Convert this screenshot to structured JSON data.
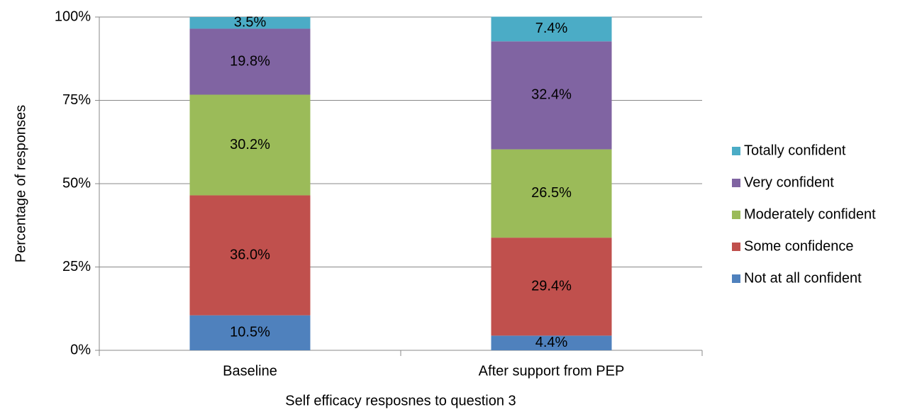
{
  "chart_data": {
    "type": "stacked_bar",
    "x_label": "Self efficacy resposnes to question 3",
    "y_label": "Percentage of responses",
    "categories": [
      "Baseline",
      "After support from PEP"
    ],
    "series": [
      {
        "name": "Not at all confident",
        "color": "#4f81bd",
        "values": [
          10.5,
          4.4
        ],
        "value_labels": [
          "10.5%",
          "4.4%"
        ]
      },
      {
        "name": "Some confidence",
        "color": "#c0504d",
        "values": [
          36.0,
          29.4
        ],
        "value_labels": [
          "36.0%",
          "29.4%"
        ]
      },
      {
        "name": "Moderately confident",
        "color": "#9bbb59",
        "values": [
          30.2,
          26.5
        ],
        "value_labels": [
          "30.2%",
          "26.5%"
        ]
      },
      {
        "name": "Very confident",
        "color": "#8064a2",
        "values": [
          19.8,
          32.4
        ],
        "value_labels": [
          "19.8%",
          "32.4%"
        ]
      },
      {
        "name": "Totally confident",
        "color": "#4bacc6",
        "values": [
          3.5,
          7.4
        ],
        "value_labels": [
          "3.5%",
          "7.4%"
        ]
      }
    ],
    "ylim": [
      0,
      100
    ],
    "yticks": [
      {
        "value": 0,
        "label": "0%"
      },
      {
        "value": 25,
        "label": "25%"
      },
      {
        "value": 50,
        "label": "50%"
      },
      {
        "value": 75,
        "label": "75%"
      },
      {
        "value": 100,
        "label": "100%"
      }
    ],
    "grid": true,
    "legend": "right"
  }
}
